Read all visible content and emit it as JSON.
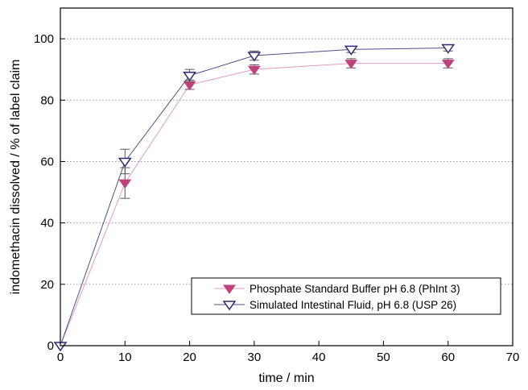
{
  "chart_data": {
    "type": "line",
    "title": "",
    "xlabel": "time / min",
    "ylabel": "indomethacin dissolved / % of label claim",
    "xlim": [
      0,
      70
    ],
    "ylim": [
      0,
      110
    ],
    "x_ticks": [
      0,
      10,
      20,
      30,
      40,
      50,
      60,
      70
    ],
    "y_ticks": [
      0,
      20,
      40,
      60,
      80,
      100
    ],
    "x_tick_labels": [
      "0",
      "10",
      "20",
      "30",
      "40",
      "50",
      "60",
      "70"
    ],
    "y_tick_labels": [
      "0",
      "20",
      "40",
      "60",
      "80",
      "100"
    ],
    "grid": "horizontal dotted",
    "legend_position": "bottom-right",
    "series": [
      {
        "name": "Phosphate Standard Buffer pH 6.8 (PhInt 3)",
        "marker": "filled-down-triangle",
        "color": "#c0407a",
        "x": [
          0,
          10,
          20,
          30,
          45,
          60
        ],
        "y": [
          0,
          53,
          85,
          90,
          92,
          92
        ],
        "error": [
          0,
          5,
          1.5,
          1.5,
          1.5,
          1.5
        ]
      },
      {
        "name": "Simulated Intestinal Fluid, pH 6.8 (USP 26)",
        "marker": "open-down-triangle",
        "color": "#2a2a6e",
        "x": [
          0,
          10,
          20,
          30,
          45,
          60
        ],
        "y": [
          0,
          60,
          88,
          94.5,
          96.5,
          97
        ],
        "error": [
          0,
          4,
          2,
          1.5,
          1,
          1
        ]
      }
    ]
  }
}
